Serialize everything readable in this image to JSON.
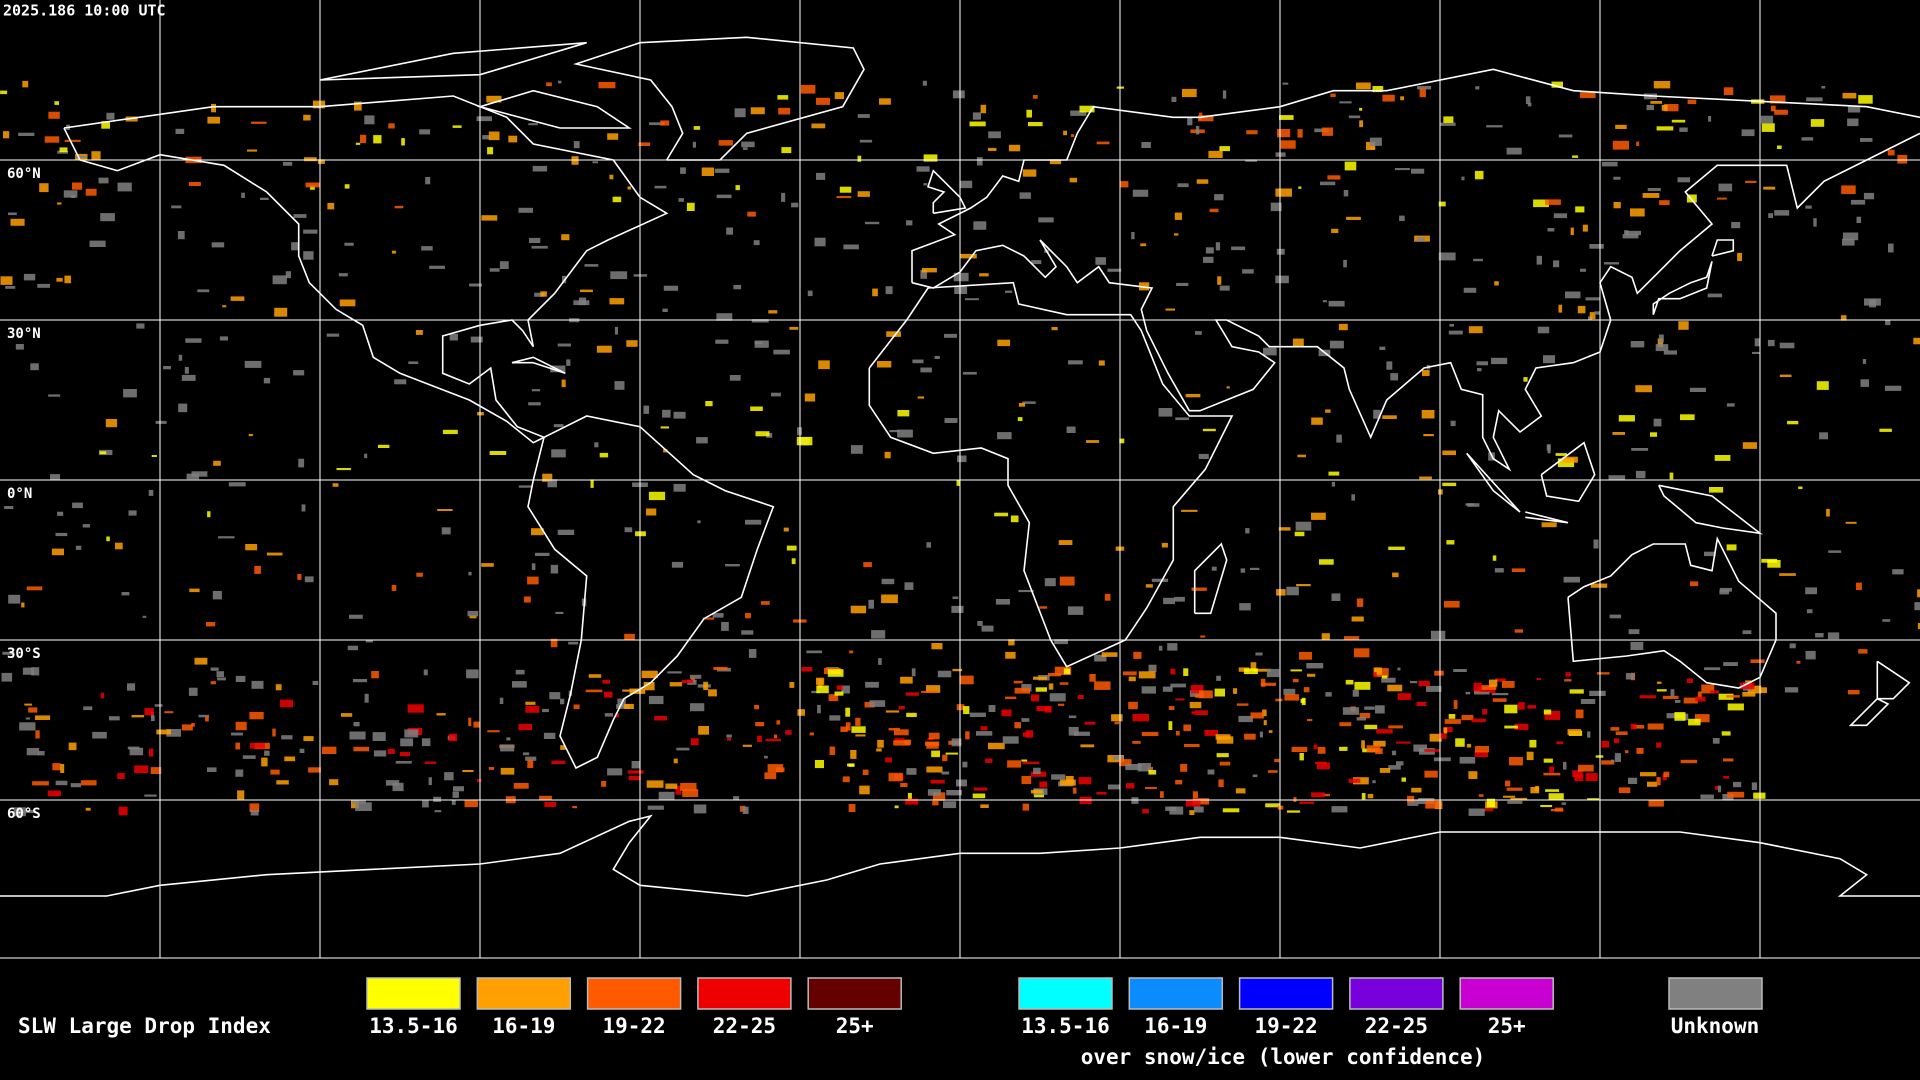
{
  "header": {
    "timestamp": "2025.186 10:00 UTC"
  },
  "map": {
    "lat_labels": [
      "60°N",
      "30°N",
      "0°N",
      "30°S",
      "60°S"
    ]
  },
  "legend": {
    "title": "SLW Large Drop Index",
    "normal": [
      {
        "label": "13.5-16",
        "color": "#ffff00"
      },
      {
        "label": "16-19",
        "color": "#ffa000"
      },
      {
        "label": "19-22",
        "color": "#ff5a00"
      },
      {
        "label": "22-25",
        "color": "#ee0000"
      },
      {
        "label": "25+",
        "color": "#640000"
      }
    ],
    "snow_ice": [
      {
        "label": "13.5-16",
        "color": "#00ffff"
      },
      {
        "label": "16-19",
        "color": "#0a8cff"
      },
      {
        "label": "19-22",
        "color": "#0000ff"
      },
      {
        "label": "22-25",
        "color": "#7800dc"
      },
      {
        "label": "25+",
        "color": "#c800d2"
      }
    ],
    "snow_ice_caption": "over snow/ice (lower confidence)",
    "unknown": {
      "label": "Unknown",
      "color": "#808080"
    }
  }
}
